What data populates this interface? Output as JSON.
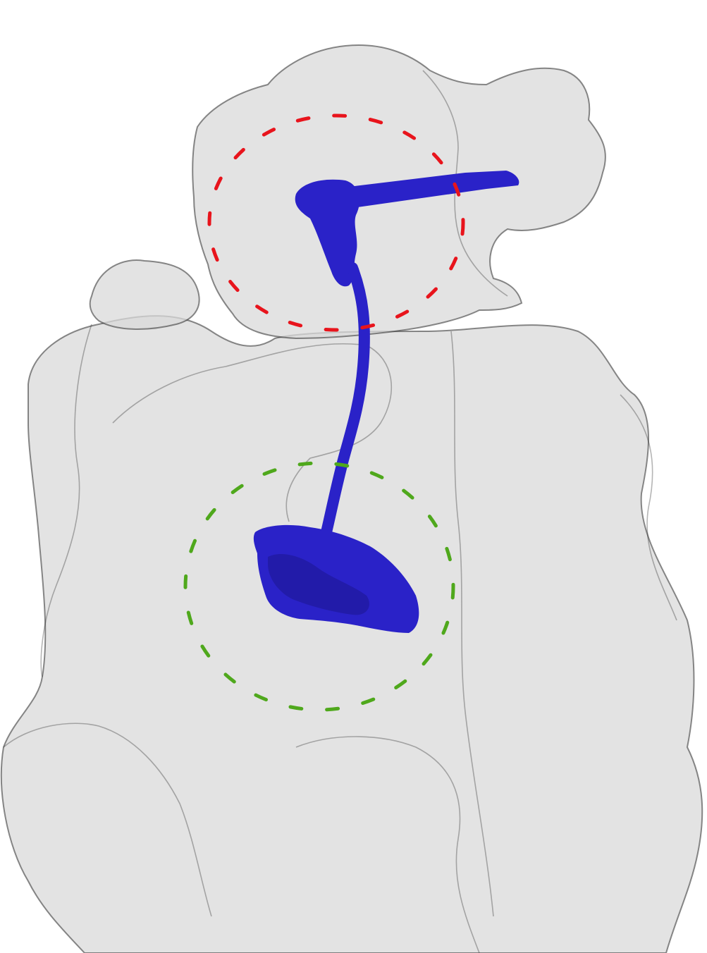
{
  "scene": {
    "background_color": "#ffffff",
    "surface_fill_color": "#d9d9d9",
    "surface_edge_color": "#2b2b2b",
    "density_color": "#2a22c8",
    "upper_marker_color": "#e8141c",
    "lower_marker_color": "#4fa81c",
    "surface_style": "semi-transparent mesh",
    "density_style": "solid",
    "marker_style": "dashed circle"
  }
}
